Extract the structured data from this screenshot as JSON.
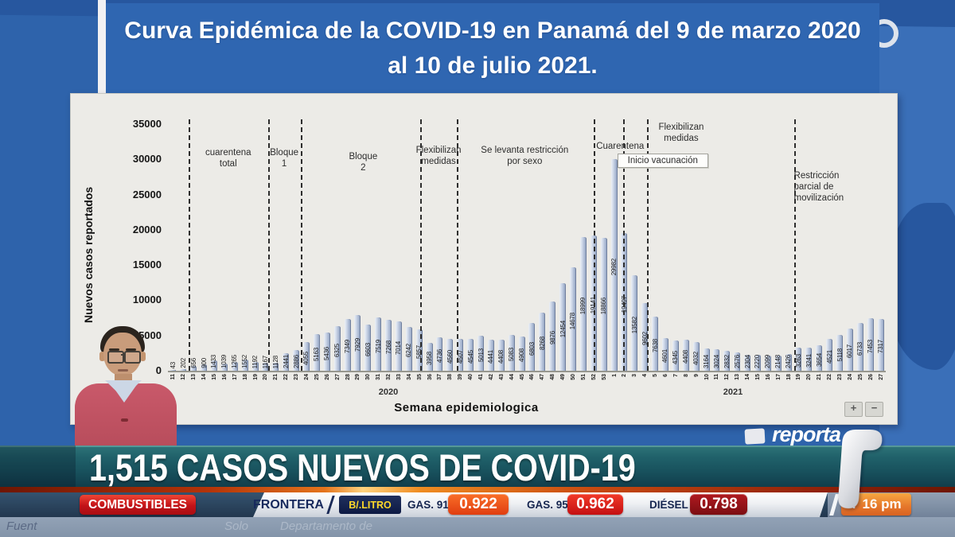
{
  "title_banner": {
    "text": "Curva Epidémica de la COVID-19 en Panamá del 9 de marzo 2020\nal 10 de julio 2021."
  },
  "headline": {
    "text": "1,515 CASOS NUEVOS DE COVID-19"
  },
  "logo": {
    "brand": "reporta"
  },
  "chart": {
    "y_axis_title": "Nuevos casos reportados",
    "x_axis_title": "Semana epidemiologica",
    "y_ticks": [
      "35000",
      "30000",
      "25000",
      "20000",
      "15000",
      "10000",
      "5000",
      "0"
    ],
    "zoom_in_label": "+",
    "zoom_out_label": "−"
  },
  "chart_data": {
    "type": "bar",
    "title": "Curva Epidémica de la COVID-19 en Panamá del 9 de marzo 2020 al 10 de julio 2021.",
    "xlabel": "Semana epidemiologica",
    "ylabel": "Nuevos casos reportados",
    "ylim": [
      0,
      35000
    ],
    "bar_color": "#b9c6db",
    "groups": [
      {
        "year": "2020",
        "weeks": [
          11,
          12,
          13,
          14,
          15,
          16,
          17,
          18,
          19,
          20,
          21,
          22,
          23,
          24,
          25,
          26,
          27,
          28,
          29,
          30,
          31,
          32,
          33,
          34,
          35,
          36,
          37,
          38,
          39,
          40,
          41,
          42,
          43,
          44,
          45,
          46,
          47,
          48,
          49,
          50,
          51,
          52,
          53
        ],
        "values": [
          43,
          202,
          656,
          900,
          1433,
          1039,
          1265,
          1552,
          1192,
          1167,
          1128,
          2441,
          2886,
          4055,
          5163,
          5436,
          6325,
          7349,
          7929,
          6603,
          7519,
          7268,
          7014,
          6242,
          5857,
          3958,
          4736,
          4560,
          4507,
          4545,
          5013,
          4441,
          4408,
          5083,
          4908,
          6803,
          8268,
          9876,
          12454,
          14678,
          18999,
          19141,
          18866
        ]
      },
      {
        "year": "2021",
        "weeks": [
          1,
          2,
          3,
          4,
          5,
          6,
          7,
          8,
          9,
          10,
          11,
          12,
          13,
          14,
          15,
          16,
          17,
          18,
          19,
          20,
          21,
          22,
          23,
          24,
          25,
          26,
          27
        ],
        "values": [
          29982,
          19497,
          13582,
          9602,
          7638,
          4601,
          4345,
          4408,
          4032,
          3164,
          3024,
          2832,
          2576,
          2304,
          2220,
          2099,
          2148,
          2426,
          3263,
          3241,
          3654,
          4521,
          5118,
          6017,
          6733,
          7453,
          7317
        ]
      }
    ],
    "annotations": [
      "cuarentena\ntotal",
      "Bloque\n1",
      "Bloque\n2",
      "Flexibilizan\nmedidas",
      "Se levanta restricción\npor sexo",
      "Cuarentena",
      "Inicio vacunación",
      "Flexibilizan\nmedidas",
      "Restricción\nparcial de\nmovilización"
    ]
  },
  "ticker": {
    "category": "COMBUSTIBLES",
    "region": "FRONTERA",
    "unit_badge": "B/.LITRO",
    "items": [
      {
        "label": "GAS. 91",
        "value": "0.922"
      },
      {
        "label": "GAS. 95",
        "value": "0.962"
      },
      {
        "label": "DIÉSEL",
        "value": "0.798"
      }
    ],
    "time": "7 16 pm"
  },
  "background_text": {
    "left": "Fuent",
    "fragments": [
      "Solo",
      "Departamento de"
    ]
  }
}
